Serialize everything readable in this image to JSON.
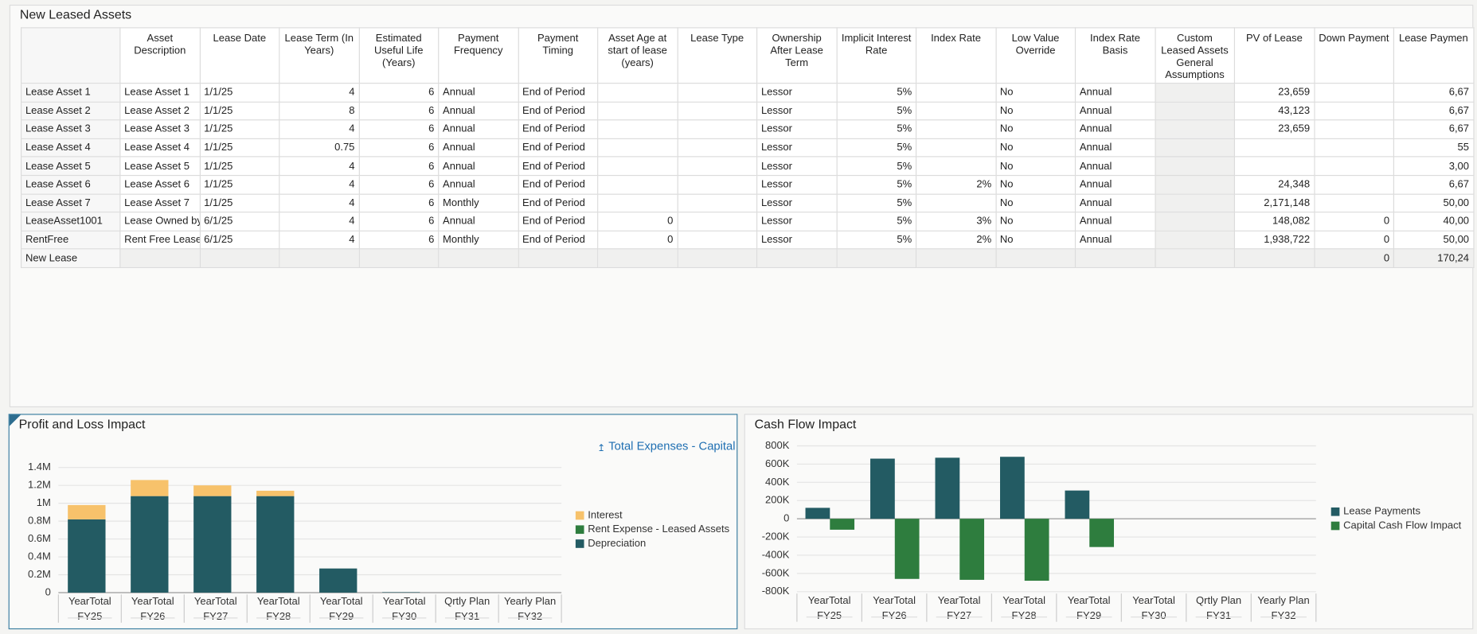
{
  "panel_title": "New Leased Assets",
  "table": {
    "columns": [
      "Asset Description",
      "Lease Date",
      "Lease Term (In Years)",
      "Estimated Useful Life (Years)",
      "Payment Frequency",
      "Payment Timing",
      "Asset Age at start of lease (years)",
      "Lease Type",
      "Ownership After Lease Term",
      "Implicit Interest Rate",
      "Index Rate",
      "Low Value Override",
      "Index Rate Basis",
      "Custom Leased Assets General Assumptions",
      "PV of Lease",
      "Down Payment",
      "Lease Paymen"
    ],
    "rows": [
      {
        "label": "Lease Asset 1",
        "cells": [
          "Lease Asset 1",
          "1/1/25",
          "4",
          "6",
          "Annual",
          "End of Period",
          null,
          null,
          "Lessor",
          "5%",
          null,
          "No",
          "Annual",
          null,
          "23,659",
          null,
          "6,67"
        ]
      },
      {
        "label": "Lease Asset 2",
        "cells": [
          "Lease Asset 2",
          "1/1/25",
          "8",
          "6",
          "Annual",
          "End of Period",
          null,
          null,
          "Lessor",
          "5%",
          null,
          "No",
          "Annual",
          null,
          "43,123",
          null,
          "6,67"
        ]
      },
      {
        "label": "Lease Asset 3",
        "cells": [
          "Lease Asset 3",
          "1/1/25",
          "4",
          "6",
          "Annual",
          "End of Period",
          null,
          null,
          "Lessor",
          "5%",
          null,
          "No",
          "Annual",
          null,
          "23,659",
          null,
          "6,67"
        ]
      },
      {
        "label": "Lease Asset 4",
        "cells": [
          "Lease Asset 4",
          "1/1/25",
          "0.75",
          "6",
          "Annual",
          "End of Period",
          null,
          null,
          "Lessor",
          "5%",
          null,
          "No",
          "Annual",
          null,
          null,
          null,
          "55"
        ]
      },
      {
        "label": "Lease Asset 5",
        "cells": [
          "Lease Asset 5",
          "1/1/25",
          "4",
          "6",
          "Annual",
          "End of Period",
          null,
          null,
          "Lessor",
          "5%",
          null,
          "No",
          "Annual",
          null,
          null,
          null,
          "3,00"
        ]
      },
      {
        "label": "Lease Asset 6",
        "cells": [
          "Lease Asset 6",
          "1/1/25",
          "4",
          "6",
          "Annual",
          "End of Period",
          null,
          null,
          "Lessor",
          "5%",
          "2%",
          "No",
          "Annual",
          null,
          "24,348",
          null,
          "6,67"
        ]
      },
      {
        "label": "Lease Asset 7",
        "cells": [
          "Lease Asset 7",
          "1/1/25",
          "4",
          "6",
          "Monthly",
          "End of Period",
          null,
          null,
          "Lessor",
          "5%",
          null,
          "No",
          "Annual",
          null,
          "2,171,148",
          null,
          "50,00"
        ]
      },
      {
        "label": "LeaseAsset1001",
        "cells": [
          "Lease Owned by",
          "6/1/25",
          "4",
          "6",
          "Annual",
          "End of Period",
          "0",
          null,
          "Lessor",
          "5%",
          "3%",
          "No",
          "Annual",
          null,
          "148,082",
          "0",
          "40,00"
        ]
      },
      {
        "label": "RentFree",
        "cells": [
          "Rent Free Lease",
          "6/1/25",
          "4",
          "6",
          "Monthly",
          "End of Period",
          "0",
          null,
          "Lessor",
          "5%",
          "2%",
          "No",
          "Annual",
          null,
          "1,938,722",
          "0",
          "50,00"
        ]
      },
      {
        "label": "New Lease",
        "cells": [
          null,
          null,
          null,
          null,
          null,
          null,
          null,
          null,
          null,
          null,
          null,
          null,
          null,
          null,
          null,
          "0",
          "170,24"
        ]
      }
    ]
  },
  "chart_data": [
    {
      "type": "stacked-bar",
      "title": "Profit and Loss Impact",
      "link_text": "Total Expenses - Capital",
      "categories": [
        "YearTotal",
        "YearTotal",
        "YearTotal",
        "YearTotal",
        "YearTotal",
        "YearTotal",
        "Qrtly Plan",
        "Yearly Plan"
      ],
      "category_groups": [
        "FY25",
        "FY26",
        "FY27",
        "FY28",
        "FY29",
        "FY30",
        "FY31",
        "FY32"
      ],
      "series": [
        {
          "name": "Depreciation",
          "color": "#235b63",
          "values": [
            820000,
            1080000,
            1080000,
            1080000,
            270000,
            5000,
            0,
            0
          ]
        },
        {
          "name": "Rent Expense - Leased Assets",
          "color": "#2e7d3e",
          "values": [
            0,
            0,
            0,
            0,
            0,
            0,
            0,
            0
          ]
        },
        {
          "name": "Interest",
          "color": "#f7c26b",
          "values": [
            160000,
            180000,
            120000,
            60000,
            0,
            0,
            0,
            0
          ]
        }
      ],
      "ylim": [
        0,
        1400000
      ],
      "yticks": [
        0,
        {
          "value": 200000,
          "label": "0.2M"
        },
        {
          "value": 400000,
          "label": "0.4M"
        },
        {
          "value": 600000,
          "label": "0.6M"
        },
        {
          "value": 800000,
          "label": "0.8M"
        },
        {
          "value": 1000000,
          "label": "1M"
        },
        {
          "value": 1200000,
          "label": "1.2M"
        },
        {
          "value": 1400000,
          "label": "1.4M"
        }
      ],
      "grid": true
    },
    {
      "type": "grouped-bar",
      "title": "Cash Flow Impact",
      "categories": [
        "YearTotal",
        "YearTotal",
        "YearTotal",
        "YearTotal",
        "YearTotal",
        "YearTotal",
        "Qrtly Plan",
        "Yearly Plan"
      ],
      "category_groups": [
        "FY25",
        "FY26",
        "FY27",
        "FY28",
        "FY29",
        "FY30",
        "FY31",
        "FY32"
      ],
      "series": [
        {
          "name": "Lease Payments",
          "color": "#235b63",
          "values": [
            120000,
            660000,
            670000,
            680000,
            310000,
            0,
            0,
            0
          ]
        },
        {
          "name": "Capital Cash Flow Impact",
          "color": "#2e7d3e",
          "values": [
            -120000,
            -660000,
            -670000,
            -680000,
            -310000,
            0,
            0,
            0
          ]
        }
      ],
      "ylim": [
        -800000,
        800000
      ],
      "yticks": [
        {
          "value": -800000,
          "label": "-800K"
        },
        {
          "value": -600000,
          "label": "-600K"
        },
        {
          "value": -400000,
          "label": "-400K"
        },
        {
          "value": -200000,
          "label": "-200K"
        },
        0,
        {
          "value": 200000,
          "label": "200K"
        },
        {
          "value": 400000,
          "label": "400K"
        },
        {
          "value": 600000,
          "label": "600K"
        },
        {
          "value": 800000,
          "label": "800K"
        }
      ],
      "grid": true
    }
  ]
}
